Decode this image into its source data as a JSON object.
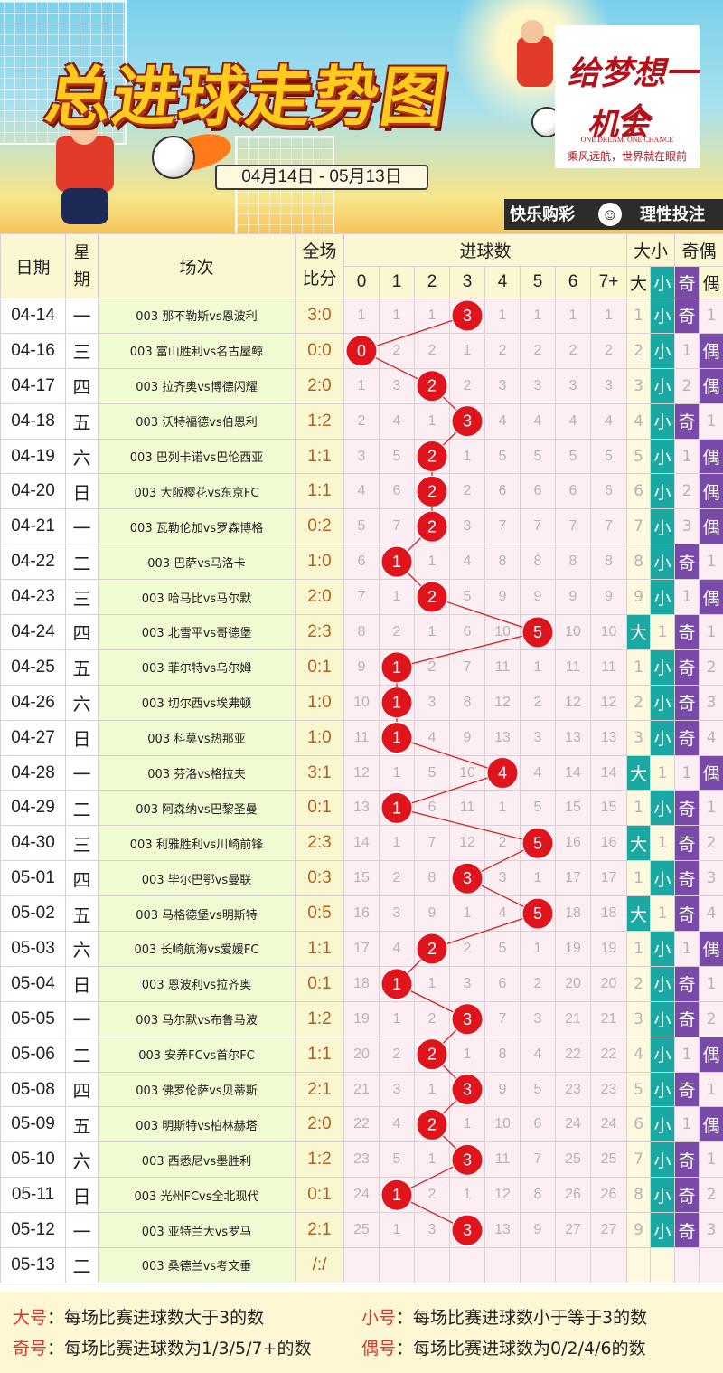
{
  "banner": {
    "title": "总进球走势图",
    "date_range": "04月14日 - 05月13日",
    "brand_line1": "给梦想一个",
    "brand_line2": "机会",
    "brand_en": "ONE DREAM, ONE CHANCE",
    "brand_cn": "乘风远航，世界就在眼前",
    "tagline_left": "快乐购彩",
    "tagline_right": "理性投注",
    "smiley_icon": "smiley-face-icon"
  },
  "headers": {
    "date": "日期",
    "weekday": "星期",
    "match": "场次",
    "score_top": "全场",
    "score_bottom": "比分",
    "goals": "进球数",
    "goal_cols": [
      "0",
      "1",
      "2",
      "3",
      "4",
      "5",
      "6",
      "7+"
    ],
    "size": "大小",
    "size_big": "大",
    "size_small": "小",
    "oddeven": "奇偶",
    "odd": "奇",
    "even": "偶"
  },
  "rows": [
    {
      "date": "04-14",
      "wd": "一",
      "match": "003 那不勒斯vs恩波利",
      "score": "3:0",
      "goals": [
        1,
        1,
        1,
        3,
        1,
        1,
        1,
        1
      ],
      "hit": 3,
      "size": [
        "1",
        "小"
      ],
      "oe": [
        "奇",
        "1"
      ]
    },
    {
      "date": "04-16",
      "wd": "三",
      "match": "003 富山胜利vs名古屋鲸",
      "score": "0:0",
      "goals": [
        0,
        2,
        2,
        1,
        2,
        2,
        2,
        2
      ],
      "hit": 0,
      "size": [
        "2",
        "小"
      ],
      "oe": [
        "1",
        "偶"
      ]
    },
    {
      "date": "04-17",
      "wd": "四",
      "match": "003 拉齐奥vs博德闪耀",
      "score": "2:0",
      "goals": [
        1,
        3,
        2,
        2,
        3,
        3,
        3,
        3
      ],
      "hit": 2,
      "size": [
        "3",
        "小"
      ],
      "oe": [
        "2",
        "偶"
      ]
    },
    {
      "date": "04-18",
      "wd": "五",
      "match": "003 沃特福德vs伯恩利",
      "score": "1:2",
      "goals": [
        2,
        4,
        1,
        3,
        4,
        4,
        4,
        4
      ],
      "hit": 3,
      "size": [
        "4",
        "小"
      ],
      "oe": [
        "奇",
        "1"
      ]
    },
    {
      "date": "04-19",
      "wd": "六",
      "match": "003 巴列卡诺vs巴伦西亚",
      "score": "1:1",
      "goals": [
        3,
        5,
        2,
        1,
        5,
        5,
        5,
        5
      ],
      "hit": 2,
      "size": [
        "5",
        "小"
      ],
      "oe": [
        "1",
        "偶"
      ]
    },
    {
      "date": "04-20",
      "wd": "日",
      "match": "003 大阪樱花vs东京FC",
      "score": "1:1",
      "goals": [
        4,
        6,
        2,
        2,
        6,
        6,
        6,
        6
      ],
      "hit": 2,
      "size": [
        "6",
        "小"
      ],
      "oe": [
        "2",
        "偶"
      ]
    },
    {
      "date": "04-21",
      "wd": "一",
      "match": "003 瓦勒伦加vs罗森博格",
      "score": "0:2",
      "goals": [
        5,
        7,
        2,
        3,
        7,
        7,
        7,
        7
      ],
      "hit": 2,
      "size": [
        "7",
        "小"
      ],
      "oe": [
        "3",
        "偶"
      ]
    },
    {
      "date": "04-22",
      "wd": "二",
      "match": "003 巴萨vs马洛卡",
      "score": "1:0",
      "goals": [
        6,
        1,
        1,
        4,
        8,
        8,
        8,
        8
      ],
      "hit": 1,
      "size": [
        "8",
        "小"
      ],
      "oe": [
        "奇",
        "1"
      ]
    },
    {
      "date": "04-23",
      "wd": "三",
      "match": "003 哈马比vs马尔默",
      "score": "2:0",
      "goals": [
        7,
        1,
        2,
        5,
        9,
        9,
        9,
        9
      ],
      "hit": 2,
      "size": [
        "9",
        "小"
      ],
      "oe": [
        "1",
        "偶"
      ]
    },
    {
      "date": "04-24",
      "wd": "四",
      "match": "003 北雪平vs哥德堡",
      "score": "2:3",
      "goals": [
        8,
        2,
        1,
        6,
        10,
        5,
        10,
        10
      ],
      "hit": 5,
      "size": [
        "大",
        "1"
      ],
      "oe": [
        "奇",
        "1"
      ]
    },
    {
      "date": "04-25",
      "wd": "五",
      "match": "003 菲尔特vs乌尔姆",
      "score": "0:1",
      "goals": [
        9,
        1,
        2,
        7,
        11,
        1,
        11,
        11
      ],
      "hit": 1,
      "size": [
        "1",
        "小"
      ],
      "oe": [
        "奇",
        "2"
      ]
    },
    {
      "date": "04-26",
      "wd": "六",
      "match": "003 切尔西vs埃弗顿",
      "score": "1:0",
      "goals": [
        10,
        1,
        3,
        8,
        12,
        2,
        12,
        12
      ],
      "hit": 1,
      "size": [
        "2",
        "小"
      ],
      "oe": [
        "奇",
        "3"
      ]
    },
    {
      "date": "04-27",
      "wd": "日",
      "match": "003 科莫vs热那亚",
      "score": "1:0",
      "goals": [
        11,
        1,
        4,
        9,
        13,
        3,
        13,
        13
      ],
      "hit": 1,
      "size": [
        "3",
        "小"
      ],
      "oe": [
        "奇",
        "4"
      ]
    },
    {
      "date": "04-28",
      "wd": "一",
      "match": "003 芬洛vs格拉夫",
      "score": "3:1",
      "goals": [
        12,
        1,
        5,
        10,
        4,
        4,
        14,
        14
      ],
      "hit": 4,
      "size": [
        "大",
        "1"
      ],
      "oe": [
        "1",
        "偶"
      ]
    },
    {
      "date": "04-29",
      "wd": "二",
      "match": "003 阿森纳vs巴黎圣曼",
      "score": "0:1",
      "goals": [
        13,
        1,
        6,
        11,
        1,
        5,
        15,
        15
      ],
      "hit": 1,
      "size": [
        "1",
        "小"
      ],
      "oe": [
        "奇",
        "1"
      ]
    },
    {
      "date": "04-30",
      "wd": "三",
      "match": "003 利雅胜利vs川崎前锋",
      "score": "2:3",
      "goals": [
        14,
        1,
        7,
        12,
        2,
        5,
        16,
        16
      ],
      "hit": 5,
      "size": [
        "大",
        "1"
      ],
      "oe": [
        "奇",
        "2"
      ]
    },
    {
      "date": "05-01",
      "wd": "四",
      "match": "003 毕尔巴鄂vs曼联",
      "score": "0:3",
      "goals": [
        15,
        2,
        8,
        3,
        3,
        1,
        17,
        17
      ],
      "hit": 3,
      "size": [
        "1",
        "小"
      ],
      "oe": [
        "奇",
        "3"
      ]
    },
    {
      "date": "05-02",
      "wd": "五",
      "match": "003 马格德堡vs明斯特",
      "score": "0:5",
      "goals": [
        16,
        3,
        9,
        1,
        4,
        5,
        18,
        18
      ],
      "hit": 5,
      "size": [
        "大",
        "1"
      ],
      "oe": [
        "奇",
        "4"
      ]
    },
    {
      "date": "05-03",
      "wd": "六",
      "match": "003 长崎航海vs爱媛FC",
      "score": "1:1",
      "goals": [
        17,
        4,
        2,
        2,
        5,
        1,
        19,
        19
      ],
      "hit": 2,
      "size": [
        "1",
        "小"
      ],
      "oe": [
        "1",
        "偶"
      ]
    },
    {
      "date": "05-04",
      "wd": "日",
      "match": "003 恩波利vs拉齐奥",
      "score": "0:1",
      "goals": [
        18,
        1,
        1,
        3,
        6,
        2,
        20,
        20
      ],
      "hit": 1,
      "size": [
        "2",
        "小"
      ],
      "oe": [
        "奇",
        "1"
      ]
    },
    {
      "date": "05-05",
      "wd": "一",
      "match": "003 马尔默vs布鲁马波",
      "score": "1:2",
      "goals": [
        19,
        1,
        2,
        3,
        7,
        3,
        21,
        21
      ],
      "hit": 3,
      "size": [
        "3",
        "小"
      ],
      "oe": [
        "奇",
        "2"
      ]
    },
    {
      "date": "05-06",
      "wd": "二",
      "match": "003 安养FCvs首尔FC",
      "score": "1:1",
      "goals": [
        20,
        2,
        2,
        1,
        8,
        4,
        22,
        22
      ],
      "hit": 2,
      "size": [
        "4",
        "小"
      ],
      "oe": [
        "1",
        "偶"
      ]
    },
    {
      "date": "05-08",
      "wd": "四",
      "match": "003 佛罗伦萨vs贝蒂斯",
      "score": "2:1",
      "goals": [
        21,
        3,
        1,
        3,
        9,
        5,
        23,
        23
      ],
      "hit": 3,
      "size": [
        "5",
        "小"
      ],
      "oe": [
        "奇",
        "1"
      ]
    },
    {
      "date": "05-09",
      "wd": "五",
      "match": "003 明斯特vs柏林赫塔",
      "score": "2:0",
      "goals": [
        22,
        4,
        2,
        1,
        10,
        6,
        24,
        24
      ],
      "hit": 2,
      "size": [
        "6",
        "小"
      ],
      "oe": [
        "1",
        "偶"
      ]
    },
    {
      "date": "05-10",
      "wd": "六",
      "match": "003 西悉尼vs墨胜利",
      "score": "1:2",
      "goals": [
        23,
        5,
        1,
        3,
        11,
        7,
        25,
        25
      ],
      "hit": 3,
      "size": [
        "7",
        "小"
      ],
      "oe": [
        "奇",
        "1"
      ]
    },
    {
      "date": "05-11",
      "wd": "日",
      "match": "003 光州FCvs全北现代",
      "score": "0:1",
      "goals": [
        24,
        1,
        2,
        1,
        12,
        8,
        26,
        26
      ],
      "hit": 1,
      "size": [
        "8",
        "小"
      ],
      "oe": [
        "奇",
        "2"
      ]
    },
    {
      "date": "05-12",
      "wd": "一",
      "match": "003 亚特兰大vs罗马",
      "score": "2:1",
      "goals": [
        25,
        1,
        3,
        3,
        13,
        9,
        27,
        27
      ],
      "hit": 3,
      "size": [
        "9",
        "小"
      ],
      "oe": [
        "奇",
        "3"
      ]
    },
    {
      "date": "05-13",
      "wd": "二",
      "match": "003 桑德兰vs考文垂",
      "score": "/:/",
      "goals": [
        "",
        "",
        "",
        "",
        "",
        "",
        "",
        ""
      ],
      "hit": null,
      "size": [
        "",
        ""
      ],
      "oe": [
        "",
        ""
      ]
    }
  ],
  "legend": [
    {
      "key": "大号",
      "text": "：每场比赛进球数大于3的数"
    },
    {
      "key": "小号",
      "text": "：每场比赛进球数小于等于3的数"
    },
    {
      "key": "奇号",
      "text": "：每场比赛进球数为1/3/5/7+的数"
    },
    {
      "key": "偶号",
      "text": "：每场比赛进球数为0/2/4/6的数"
    }
  ],
  "colors": {
    "hit_ball": "#e0141c",
    "trend_line": "#d22020",
    "teal": "#1aa8a2",
    "purple": "#7a4aa8",
    "legend_key": "#e3322c"
  }
}
